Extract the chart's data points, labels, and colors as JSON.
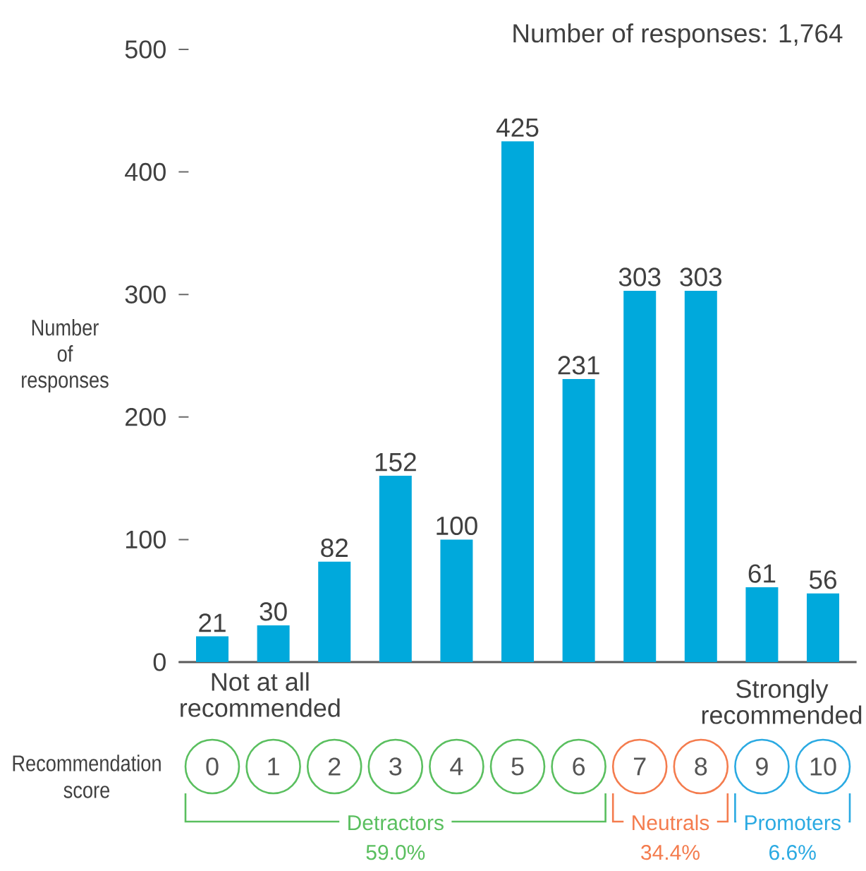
{
  "chart_data": {
    "type": "bar",
    "title": "Number of responses: 1,764",
    "xlabel": "Recommendation score",
    "ylabel": "Number of responses",
    "categories": [
      "0",
      "1",
      "2",
      "3",
      "4",
      "5",
      "6",
      "7",
      "8",
      "9",
      "10"
    ],
    "values": [
      21,
      30,
      82,
      152,
      100,
      425,
      231,
      303,
      303,
      61,
      56
    ],
    "color": "#00a9dc",
    "data_labels": true,
    "ylim": [
      0,
      500
    ],
    "yticks": [
      0,
      100,
      200,
      300,
      400,
      500
    ],
    "annotations": [
      "Not at all recommended",
      "Strongly recommended",
      "Detractors 59.0%",
      "Neutrals 34.4%",
      "Promoters 6.6%"
    ]
  }
}
